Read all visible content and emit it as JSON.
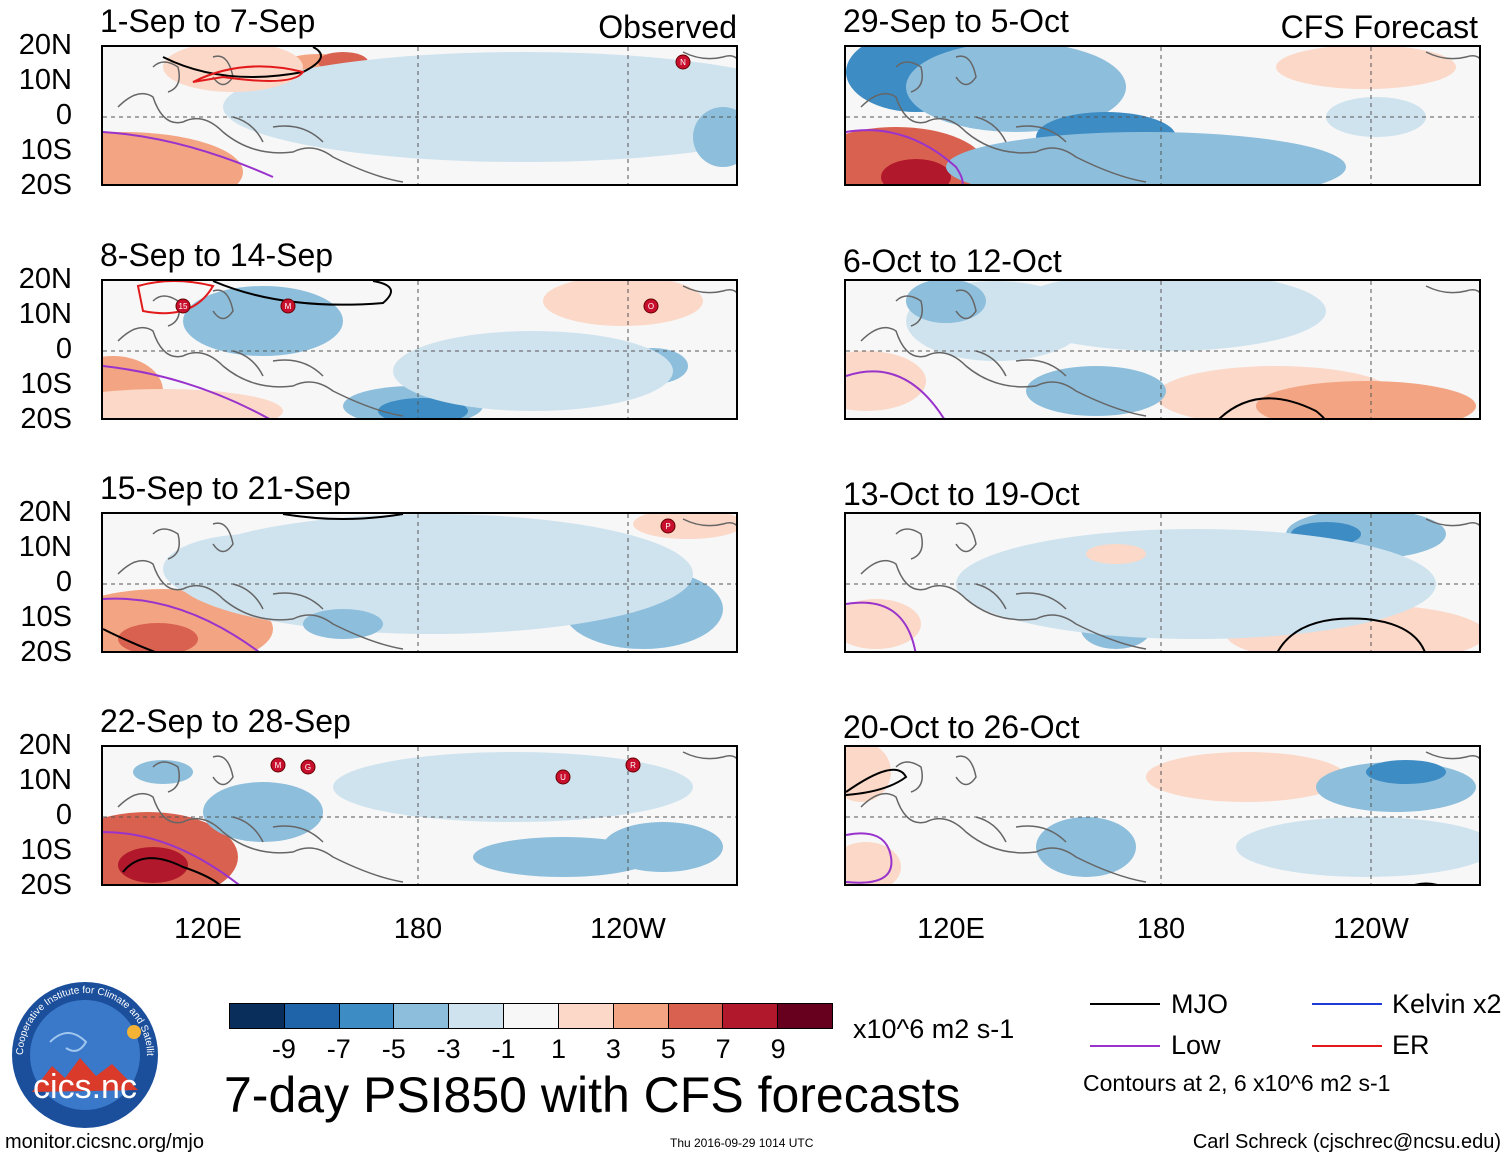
{
  "panels": [
    {
      "date": "1-Sep to 7-Sep",
      "label": "Observed",
      "storms": [
        "N"
      ],
      "variant": 0
    },
    {
      "date": "8-Sep to 14-Sep",
      "label": "",
      "storms": [
        "15",
        "M",
        "O"
      ],
      "variant": 1
    },
    {
      "date": "15-Sep to 21-Sep",
      "label": "",
      "storms": [
        "P"
      ],
      "variant": 2
    },
    {
      "date": "22-Sep to 28-Sep",
      "label": "",
      "storms": [
        "M",
        "G",
        "U",
        "R"
      ],
      "variant": 3
    },
    {
      "date": "29-Sep to 5-Oct",
      "label": "CFS Forecast",
      "storms": [],
      "variant": 4
    },
    {
      "date": "6-Oct to 12-Oct",
      "label": "",
      "storms": [],
      "variant": 5
    },
    {
      "date": "13-Oct to 19-Oct",
      "label": "",
      "storms": [],
      "variant": 6
    },
    {
      "date": "20-Oct to 26-Oct",
      "label": "",
      "storms": [],
      "variant": 7
    }
  ],
  "lat_labels": [
    "20N",
    "10N",
    "0",
    "10S",
    "20S"
  ],
  "lon_labels": [
    "120E",
    "180",
    "120W"
  ],
  "colorbar": {
    "colors": [
      "#0a2e5c",
      "#1f63a8",
      "#3d8cc4",
      "#8dbedc",
      "#cfe3ef",
      "#f7f7f7",
      "#fbd8c7",
      "#f3a583",
      "#d96150",
      "#b2182b",
      "#67001f"
    ],
    "ticks": [
      "-9",
      "-7",
      "-5",
      "-3",
      "-1",
      "1",
      "3",
      "5",
      "7",
      "9"
    ],
    "units": "x10^6 m2 s-1"
  },
  "title": "7-day PSI850 with CFS forecasts",
  "legend": {
    "items": [
      {
        "label": "MJO",
        "color": "#000000"
      },
      {
        "label": "Low",
        "color": "#9933cc"
      },
      {
        "label": "Kelvin x2",
        "color": "#1f3bd6"
      },
      {
        "label": "ER",
        "color": "#e31a1c"
      }
    ],
    "note": "Contours at 2, 6 x10^6 m2 s-1"
  },
  "logo": {
    "text": "cics.nc",
    "ring_text": "Cooperative Institute for Climate and Satellites"
  },
  "footer": {
    "url": "monitor.cicsnc.org/mjo",
    "timestamp": "Thu 2016-09-29 1014 UTC",
    "author": "Carl Schreck (cjschrec@ncsu.edu)"
  }
}
